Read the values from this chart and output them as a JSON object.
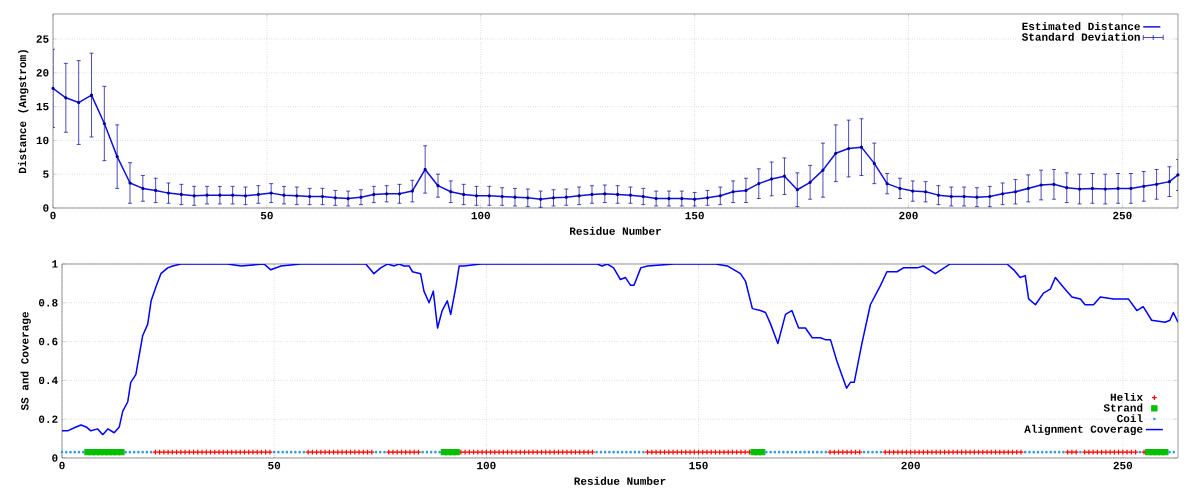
{
  "chart_data": [
    {
      "type": "line",
      "xlabel": "Residue Number",
      "ylabel": "Distance (Angstrom)",
      "xlim": [
        0,
        263
      ],
      "ylim": [
        0,
        28.7
      ],
      "xticks": [
        0,
        50,
        100,
        150,
        200,
        250
      ],
      "yticks": [
        0,
        5,
        10,
        15,
        20,
        25
      ],
      "grid": true,
      "legend": "top right",
      "x": [
        0,
        3,
        6,
        9,
        12,
        15,
        18,
        21,
        24,
        27,
        30,
        33,
        36,
        39,
        42,
        45,
        48,
        51,
        54,
        57,
        60,
        63,
        66,
        69,
        72,
        75,
        78,
        81,
        84,
        87,
        90,
        93,
        96,
        99,
        102,
        105,
        108,
        111,
        114,
        117,
        120,
        123,
        126,
        129,
        132,
        135,
        138,
        141,
        144,
        147,
        150,
        153,
        156,
        159,
        162,
        165,
        168,
        171,
        174,
        177,
        180,
        183,
        186,
        189,
        192,
        195,
        198,
        201,
        204,
        207,
        210,
        213,
        216,
        219,
        222,
        225,
        228,
        231,
        234,
        237,
        240,
        243,
        246,
        249,
        252,
        255,
        258,
        261,
        263
      ],
      "series": [
        {
          "name": "Estimated Distance",
          "color": "#1010dd",
          "values": [
            17.7,
            16.3,
            15.6,
            16.7,
            12.5,
            7.6,
            3.7,
            2.9,
            2.6,
            2.2,
            2.0,
            1.8,
            1.9,
            1.9,
            1.9,
            1.8,
            2.0,
            2.2,
            1.9,
            1.8,
            1.7,
            1.7,
            1.5,
            1.4,
            1.6,
            2.0,
            2.1,
            2.1,
            2.5,
            5.7,
            3.3,
            2.4,
            2.0,
            1.8,
            1.8,
            1.7,
            1.6,
            1.5,
            1.3,
            1.5,
            1.6,
            1.8,
            2.0,
            2.1,
            2.0,
            1.9,
            1.7,
            1.4,
            1.4,
            1.4,
            1.3,
            1.5,
            1.8,
            2.4,
            2.6,
            3.6,
            4.3,
            4.7,
            2.7,
            3.8,
            5.6,
            8.1,
            8.8,
            9.0,
            6.6,
            3.6,
            2.9,
            2.5,
            2.4,
            1.9,
            1.7,
            1.7,
            1.6,
            1.7,
            2.1,
            2.4,
            2.9,
            3.4,
            3.5,
            3.0,
            2.8,
            2.9,
            2.8,
            2.9,
            2.9,
            3.2,
            3.5,
            3.9,
            4.9
          ]
        },
        {
          "name": "Standard Deviation",
          "type": "scatter",
          "marker": "none",
          "color": "#000099",
          "values": [
            17.7,
            16.3,
            15.6,
            16.7,
            12.5,
            7.6,
            3.7,
            2.9,
            2.6,
            2.2,
            2.0,
            1.8,
            1.9,
            1.9,
            1.9,
            1.8,
            2.0,
            2.2,
            1.9,
            1.8,
            1.7,
            1.7,
            1.5,
            1.4,
            1.6,
            2.0,
            2.1,
            2.1,
            2.5,
            5.7,
            3.3,
            2.4,
            2.0,
            1.8,
            1.8,
            1.7,
            1.6,
            1.5,
            1.3,
            1.5,
            1.6,
            1.8,
            2.0,
            2.1,
            2.0,
            1.9,
            1.7,
            1.4,
            1.4,
            1.4,
            1.3,
            1.5,
            1.8,
            2.4,
            2.6,
            3.6,
            4.3,
            4.7,
            2.7,
            3.8,
            5.6,
            8.1,
            8.8,
            9.0,
            6.6,
            3.6,
            2.9,
            2.5,
            2.4,
            1.9,
            1.7,
            1.7,
            1.6,
            1.7,
            2.1,
            2.4,
            2.9,
            3.4,
            3.5,
            3.0,
            2.8,
            2.9,
            2.8,
            2.9,
            2.9,
            3.2,
            3.5,
            3.9,
            4.9
          ],
          "errors": [
            5.8,
            5.1,
            6.2,
            6.2,
            5.5,
            4.7,
            3.0,
            1.9,
            1.8,
            1.5,
            1.5,
            1.4,
            1.3,
            1.3,
            1.3,
            1.3,
            1.3,
            1.4,
            1.3,
            1.3,
            1.2,
            1.2,
            1.1,
            1.1,
            1.1,
            1.2,
            1.2,
            1.4,
            1.6,
            3.5,
            1.7,
            1.6,
            1.5,
            1.4,
            1.4,
            1.3,
            1.3,
            1.3,
            1.2,
            1.2,
            1.2,
            1.3,
            1.3,
            1.3,
            1.3,
            1.2,
            1.2,
            1.1,
            1.1,
            1.1,
            1.0,
            1.1,
            1.3,
            1.6,
            1.8,
            2.2,
            2.5,
            2.7,
            2.5,
            2.5,
            4.0,
            4.2,
            4.2,
            4.2,
            3.0,
            1.5,
            1.5,
            1.5,
            1.5,
            1.4,
            1.4,
            1.4,
            1.4,
            1.5,
            1.6,
            1.8,
            2.0,
            2.2,
            2.2,
            2.2,
            2.2,
            2.2,
            2.2,
            2.2,
            2.2,
            2.2,
            2.2,
            2.2,
            2.3
          ]
        }
      ]
    },
    {
      "type": "line",
      "xlabel": "Residue Number",
      "ylabel": "SS and Coverage",
      "xlim": [
        0,
        263
      ],
      "ylim": [
        0,
        1
      ],
      "xticks": [
        0,
        50,
        100,
        150,
        200,
        250
      ],
      "yticks": [
        0,
        0.2,
        0.4,
        0.6,
        0.8,
        1
      ],
      "grid": true,
      "legend": "bottom right",
      "series": [
        {
          "name": "Helix",
          "type": "scatter",
          "marker": "cross",
          "color": "#ff0000",
          "x": [
            22,
            23,
            24,
            25,
            26,
            27,
            28,
            29,
            30,
            31,
            32,
            33,
            34,
            35,
            36,
            37,
            38,
            39,
            40,
            41,
            42,
            43,
            44,
            45,
            46,
            47,
            48,
            49,
            58,
            59,
            60,
            61,
            62,
            63,
            64,
            65,
            66,
            67,
            68,
            69,
            70,
            71,
            72,
            73,
            77,
            78,
            79,
            80,
            81,
            82,
            83,
            84,
            94,
            95,
            96,
            97,
            98,
            99,
            100,
            101,
            102,
            103,
            104,
            105,
            106,
            107,
            108,
            109,
            110,
            111,
            112,
            113,
            114,
            115,
            116,
            117,
            118,
            119,
            120,
            121,
            122,
            123,
            124,
            125,
            138,
            139,
            140,
            141,
            142,
            143,
            144,
            145,
            146,
            147,
            148,
            149,
            150,
            151,
            152,
            153,
            154,
            155,
            156,
            157,
            158,
            159,
            160,
            161,
            162,
            181,
            182,
            183,
            184,
            185,
            186,
            187,
            188,
            194,
            195,
            196,
            197,
            198,
            199,
            200,
            201,
            202,
            203,
            204,
            205,
            206,
            207,
            208,
            209,
            210,
            211,
            212,
            213,
            214,
            215,
            216,
            217,
            218,
            219,
            220,
            221,
            222,
            223,
            224,
            225,
            226,
            237,
            238,
            239,
            241,
            242,
            243,
            244,
            245,
            246,
            247,
            248,
            249,
            250,
            251,
            252,
            253,
            255
          ],
          "values": [
            0.03,
            0.03,
            0.03,
            0.03,
            0.03,
            0.03,
            0.03,
            0.03,
            0.03,
            0.03,
            0.03,
            0.03,
            0.03,
            0.03,
            0.03,
            0.03,
            0.03,
            0.03,
            0.03,
            0.03,
            0.03,
            0.03,
            0.03,
            0.03,
            0.03,
            0.03,
            0.03,
            0.03,
            0.03,
            0.03,
            0.03,
            0.03,
            0.03,
            0.03,
            0.03,
            0.03,
            0.03,
            0.03,
            0.03,
            0.03,
            0.03,
            0.03,
            0.03,
            0.03,
            0.03,
            0.03,
            0.03,
            0.03,
            0.03,
            0.03,
            0.03,
            0.03,
            0.03,
            0.03,
            0.03,
            0.03,
            0.03,
            0.03,
            0.03,
            0.03,
            0.03,
            0.03,
            0.03,
            0.03,
            0.03,
            0.03,
            0.03,
            0.03,
            0.03,
            0.03,
            0.03,
            0.03,
            0.03,
            0.03,
            0.03,
            0.03,
            0.03,
            0.03,
            0.03,
            0.03,
            0.03,
            0.03,
            0.03,
            0.03,
            0.03,
            0.03,
            0.03,
            0.03,
            0.03,
            0.03,
            0.03,
            0.03,
            0.03,
            0.03,
            0.03,
            0.03,
            0.03,
            0.03,
            0.03,
            0.03,
            0.03,
            0.03,
            0.03,
            0.03,
            0.03,
            0.03,
            0.03,
            0.03,
            0.03,
            0.03,
            0.03,
            0.03,
            0.03,
            0.03,
            0.03,
            0.03,
            0.03,
            0.03,
            0.03,
            0.03,
            0.03,
            0.03,
            0.03,
            0.03,
            0.03,
            0.03,
            0.03,
            0.03,
            0.03,
            0.03,
            0.03,
            0.03,
            0.03,
            0.03,
            0.03,
            0.03,
            0.03,
            0.03,
            0.03,
            0.03,
            0.03,
            0.03,
            0.03,
            0.03,
            0.03,
            0.03,
            0.03,
            0.03,
            0.03,
            0.03,
            0.03,
            0.03,
            0.03,
            0.03,
            0.03,
            0.03,
            0.03,
            0.03,
            0.03,
            0.03,
            0.03,
            0.03,
            0.03,
            0.03,
            0.03,
            0.03,
            0.03
          ]
        },
        {
          "name": "Strand",
          "type": "scatter",
          "marker": "square",
          "color": "#00c000",
          "x": [
            6,
            7,
            8,
            9,
            10,
            11,
            12,
            13,
            14,
            90,
            91,
            92,
            93,
            163,
            164,
            165,
            256,
            257,
            258,
            259,
            260
          ],
          "values": [
            0.03,
            0.03,
            0.03,
            0.03,
            0.03,
            0.03,
            0.03,
            0.03,
            0.03,
            0.03,
            0.03,
            0.03,
            0.03,
            0.03,
            0.03,
            0.03,
            0.03,
            0.03,
            0.03,
            0.03,
            0.03
          ]
        },
        {
          "name": "Coil",
          "type": "scatter",
          "marker": "circle",
          "color": "#3399dd",
          "x": [
            0,
            1,
            2,
            3,
            4,
            5,
            15,
            16,
            17,
            18,
            19,
            20,
            21,
            50,
            51,
            52,
            53,
            54,
            55,
            56,
            57,
            74,
            75,
            76,
            85,
            86,
            87,
            88,
            89,
            126,
            127,
            128,
            129,
            130,
            131,
            132,
            133,
            134,
            135,
            136,
            137,
            166,
            167,
            168,
            169,
            170,
            171,
            172,
            173,
            174,
            175,
            176,
            177,
            178,
            179,
            180,
            189,
            190,
            191,
            192,
            193,
            227,
            228,
            229,
            230,
            231,
            232,
            233,
            234,
            235,
            236,
            240,
            254,
            261,
            262
          ],
          "values": [
            0.03,
            0.03,
            0.03,
            0.03,
            0.03,
            0.03,
            0.03,
            0.03,
            0.03,
            0.03,
            0.03,
            0.03,
            0.03,
            0.03,
            0.03,
            0.03,
            0.03,
            0.03,
            0.03,
            0.03,
            0.03,
            0.03,
            0.03,
            0.03,
            0.03,
            0.03,
            0.03,
            0.03,
            0.03,
            0.03,
            0.03,
            0.03,
            0.03,
            0.03,
            0.03,
            0.03,
            0.03,
            0.03,
            0.03,
            0.03,
            0.03,
            0.03,
            0.03,
            0.03,
            0.03,
            0.03,
            0.03,
            0.03,
            0.03,
            0.03,
            0.03,
            0.03,
            0.03,
            0.03,
            0.03,
            0.03,
            0.03,
            0.03,
            0.03,
            0.03,
            0.03,
            0.03,
            0.03,
            0.03,
            0.03,
            0.03,
            0.03,
            0.03,
            0.03,
            0.03,
            0.03,
            0.03,
            0.03,
            0.03,
            0.03
          ]
        },
        {
          "name": "Alignment Coverage",
          "color": "#0000ff",
          "x": [
            0,
            1.3,
            3.3,
            4.5,
            5.7,
            6.8,
            8.4,
            9.6,
            10.8,
            12.3,
            13.5,
            14.3,
            15.5,
            16.2,
            17.4,
            18.2,
            19,
            20.2,
            21,
            22.1,
            23.3,
            24.9,
            26.1,
            28,
            39,
            42.2,
            47.6,
            49.2,
            51.6,
            56.3,
            57.9,
            71.6,
            73.5,
            75.1,
            76.7,
            78.3,
            79.4,
            80.6,
            81.8,
            82.6,
            84.5,
            85.3,
            86.5,
            87.5,
            88.5,
            89.6,
            90.8,
            91.6,
            92.8,
            93.6,
            94.7,
            98.7,
            126.1,
            127.3,
            128.5,
            130,
            131.6,
            132.8,
            134,
            134.8,
            136.4,
            138,
            144.2,
            148.1,
            154,
            156.8,
            159.9,
            161.1,
            162.7,
            164.6,
            165.8,
            167,
            168.7,
            169.3,
            170.5,
            172,
            173.6,
            175.2,
            176.8,
            178.7,
            179.9,
            181.1,
            182.6,
            184.9,
            185.8,
            186.7,
            188.5,
            190.5,
            192.9,
            194.4,
            196.8,
            198.3,
            199.9,
            201.5,
            203,
            205.8,
            209.3,
            210.1,
            222.7,
            224.3,
            225.8,
            227,
            227.8,
            229.4,
            231.3,
            232.9,
            234.1,
            236,
            238,
            240,
            241.1,
            243.1,
            244.7,
            247.8,
            251.3,
            253.3,
            254.8,
            256.8,
            260,
            261.1,
            261.9,
            263
          ],
          "values": [
            0.14,
            0.14,
            0.16,
            0.17,
            0.16,
            0.14,
            0.15,
            0.12,
            0.15,
            0.13,
            0.16,
            0.24,
            0.29,
            0.39,
            0.43,
            0.53,
            0.63,
            0.69,
            0.81,
            0.88,
            0.95,
            0.98,
            0.99,
            1,
            1,
            0.99,
            1,
            0.97,
            0.99,
            1,
            1,
            1,
            0.95,
            0.98,
            1,
            0.99,
            1,
            0.99,
            0.99,
            0.96,
            0.95,
            0.86,
            0.8,
            0.86,
            0.67,
            0.76,
            0.81,
            0.74,
            0.88,
            0.99,
            0.99,
            1,
            1,
            0.99,
            1,
            0.98,
            0.92,
            0.93,
            0.89,
            0.89,
            0.98,
            0.99,
            1,
            1,
            1,
            0.99,
            0.95,
            0.91,
            0.77,
            0.76,
            0.75,
            0.69,
            0.59,
            0.64,
            0.74,
            0.76,
            0.67,
            0.67,
            0.62,
            0.62,
            0.61,
            0.61,
            0.5,
            0.36,
            0.39,
            0.39,
            0.59,
            0.79,
            0.89,
            0.96,
            0.96,
            0.98,
            0.98,
            0.98,
            0.99,
            0.95,
            1,
            1,
            1,
            0.97,
            0.93,
            0.94,
            0.82,
            0.79,
            0.85,
            0.87,
            0.93,
            0.88,
            0.83,
            0.82,
            0.79,
            0.79,
            0.83,
            0.82,
            0.82,
            0.76,
            0.78,
            0.71,
            0.7,
            0.71,
            0.75,
            0.7
          ]
        }
      ]
    }
  ]
}
